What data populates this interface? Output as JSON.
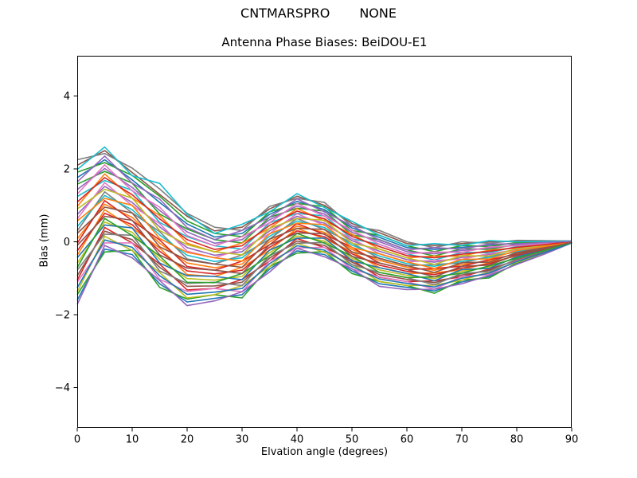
{
  "figure": {
    "suptitle_left": "CNTMARSPRO",
    "suptitle_right": "NONE",
    "axes_title": "Antenna Phase Biases: BeiDOU-E1",
    "xlabel": "Elvation angle (degrees)",
    "ylabel": "Bias (mm)"
  },
  "chart_data": {
    "type": "line",
    "suptitle": "CNTMARSPRO      NONE",
    "title": "Antenna Phase Biases: BeiDOU-E1",
    "xlabel": "Elvation angle (degrees)",
    "ylabel": "Bias (mm)",
    "xlim": [
      0,
      90
    ],
    "ylim": [
      -5.1,
      5.1
    ],
    "xticks": [
      0,
      10,
      20,
      30,
      40,
      50,
      60,
      70,
      80,
      90
    ],
    "yticks": [
      -4,
      -2,
      0,
      2,
      4
    ],
    "grid": false,
    "legend_position": "none",
    "line_width": 1.6,
    "x": [
      0,
      5,
      10,
      15,
      20,
      25,
      30,
      35,
      40,
      45,
      50,
      55,
      60,
      65,
      70,
      75,
      80,
      85,
      90
    ],
    "series": [
      {
        "color": "#1f77b4",
        "values": [
          -1.6,
          -0.2,
          -0.35,
          -1.15,
          -1.65,
          -1.55,
          -1.45,
          -0.75,
          -0.25,
          -0.35,
          -0.8,
          -1.15,
          -1.25,
          -1.35,
          -1.1,
          -0.95,
          -0.6,
          -0.33,
          -0.03
        ]
      },
      {
        "color": "#ff7f0e",
        "values": [
          0.08,
          1.03,
          0.67,
          -0.04,
          -0.58,
          -0.71,
          -0.61,
          0.0,
          0.43,
          0.26,
          -0.21,
          -0.51,
          -0.7,
          -0.78,
          -0.62,
          -0.52,
          -0.32,
          -0.17,
          -0.01
        ]
      },
      {
        "color": "#2ca02c",
        "values": [
          1.58,
          1.93,
          1.61,
          0.76,
          0.35,
          0.06,
          -0.03,
          0.67,
          0.92,
          0.84,
          0.19,
          0.06,
          -0.22,
          -0.39,
          -0.19,
          -0.21,
          -0.07,
          -0.03,
          0.01
        ]
      },
      {
        "color": "#d62728",
        "values": [
          -1.05,
          0.39,
          -0.03,
          -0.61,
          -1.32,
          -1.28,
          -1.03,
          -0.53,
          0.09,
          -0.16,
          -0.5,
          -0.97,
          -1.09,
          -1.07,
          -0.96,
          -0.75,
          -0.51,
          -0.28,
          -0.02
        ]
      },
      {
        "color": "#9467bd",
        "values": [
          0.75,
          1.52,
          1.08,
          0.41,
          -0.16,
          -0.37,
          -0.27,
          0.3,
          0.7,
          0.51,
          0.03,
          -0.26,
          -0.49,
          -0.56,
          -0.43,
          -0.35,
          -0.21,
          -0.11,
          0.0
        ]
      },
      {
        "color": "#8c564b",
        "values": [
          2.1,
          2.5,
          1.9,
          1.3,
          0.7,
          0.3,
          0.4,
          0.9,
          1.25,
          1.0,
          0.5,
          0.25,
          -0.05,
          -0.1,
          -0.05,
          0.0,
          0.02,
          0.02,
          0.02
        ]
      },
      {
        "color": "#e377c2",
        "values": [
          -1.11,
          -0.03,
          -0.03,
          -1.03,
          -1.36,
          -1.28,
          -1.37,
          -0.53,
          -0.17,
          -0.15,
          -0.75,
          -0.96,
          -1.09,
          -1.3,
          -0.95,
          -0.9,
          -0.52,
          -0.29,
          -0.03
        ]
      },
      {
        "color": "#7f7f7f",
        "values": [
          0.3,
          1.37,
          0.79,
          0.28,
          -0.47,
          -0.61,
          -0.36,
          0.07,
          0.64,
          0.33,
          -0.03,
          -0.46,
          -0.66,
          -0.62,
          -0.58,
          -0.4,
          -0.28,
          -0.15,
          0.0
        ]
      },
      {
        "color": "#bcbd22",
        "values": [
          -0.59,
          0.54,
          0.26,
          -0.48,
          -1.01,
          -1.05,
          -0.95,
          -0.3,
          0.16,
          0.02,
          -0.45,
          -0.77,
          -0.92,
          -1.01,
          -0.81,
          -0.69,
          -0.43,
          -0.23,
          -0.02
        ]
      },
      {
        "color": "#17becf",
        "values": [
          1.24,
          1.68,
          1.41,
          0.53,
          0.14,
          -0.11,
          -0.2,
          0.52,
          0.78,
          0.71,
          0.08,
          -0.07,
          -0.33,
          -0.5,
          -0.29,
          -0.3,
          -0.13,
          -0.07,
          0.01
        ]
      },
      {
        "color": "#1f77b4",
        "values": [
          1.76,
          2.25,
          1.7,
          1.08,
          0.49,
          0.13,
          0.23,
          0.75,
          1.11,
          0.88,
          0.38,
          0.12,
          -0.16,
          -0.21,
          -0.15,
          -0.09,
          -0.04,
          -0.01,
          0.01
        ]
      },
      {
        "color": "#ff7f0e",
        "values": [
          -0.37,
          0.88,
          0.38,
          -0.17,
          -0.9,
          -0.95,
          -0.7,
          -0.23,
          0.37,
          0.08,
          -0.27,
          -0.71,
          -0.87,
          -0.85,
          -0.77,
          -0.57,
          -0.39,
          -0.21,
          -0.01
        ]
      },
      {
        "color": "#2ca02c",
        "values": [
          -1.45,
          -0.28,
          -0.23,
          -1.25,
          -1.57,
          -1.45,
          -1.54,
          -0.68,
          -0.31,
          -0.27,
          -0.87,
          -1.09,
          -1.2,
          -1.41,
          -1.05,
          -0.99,
          -0.58,
          -0.32,
          -0.03
        ]
      },
      {
        "color": "#d62728",
        "values": [
          -0.04,
          1.13,
          0.58,
          0.05,
          -0.68,
          -0.78,
          -0.53,
          -0.08,
          0.5,
          0.2,
          -0.15,
          -0.58,
          -0.76,
          -0.73,
          -0.67,
          -0.49,
          -0.34,
          -0.18,
          -0.01
        ]
      },
      {
        "color": "#9467bd",
        "values": [
          1.43,
          2.01,
          1.49,
          0.86,
          0.27,
          -0.04,
          0.06,
          0.6,
          0.98,
          0.76,
          0.26,
          0.0,
          -0.27,
          -0.33,
          -0.24,
          -0.17,
          -0.09,
          -0.04,
          0.01
        ]
      },
      {
        "color": "#8c564b",
        "values": [
          -0.93,
          0.29,
          0.06,
          -0.7,
          -1.22,
          -1.21,
          -1.11,
          -0.45,
          0.02,
          -0.1,
          -0.56,
          -0.9,
          -1.03,
          -1.12,
          -0.91,
          -0.78,
          -0.49,
          -0.27,
          -0.02
        ]
      },
      {
        "color": "#e377c2",
        "values": [
          0.63,
          1.62,
          0.99,
          0.5,
          -0.26,
          -0.44,
          -0.19,
          0.22,
          0.77,
          0.45,
          0.09,
          -0.33,
          -0.55,
          -0.51,
          -0.48,
          -0.32,
          -0.23,
          -0.12,
          0.0
        ]
      },
      {
        "color": "#7f7f7f",
        "values": [
          2.25,
          2.42,
          2.02,
          1.45,
          0.78,
          0.4,
          0.31,
          0.97,
          1.19,
          1.08,
          0.43,
          0.31,
          0.0,
          -0.16,
          0.0,
          -0.04,
          0.04,
          0.03,
          0.02
        ]
      },
      {
        "color": "#bcbd22",
        "values": [
          -1.38,
          0.15,
          -0.24,
          -0.84,
          -1.54,
          -1.45,
          -1.2,
          -0.68,
          -0.04,
          -0.29,
          -0.62,
          -1.09,
          -1.2,
          -1.19,
          -1.05,
          -0.83,
          -0.56,
          -0.31,
          -0.03
        ]
      },
      {
        "color": "#17becf",
        "values": [
          0.42,
          1.27,
          0.88,
          0.19,
          -0.37,
          -0.54,
          -0.44,
          0.15,
          0.57,
          0.39,
          -0.09,
          -0.39,
          -0.6,
          -0.67,
          -0.53,
          -0.43,
          -0.26,
          -0.14,
          0.0
        ]
      },
      {
        "color": "#1f77b4",
        "values": [
          -0.44,
          0.46,
          0.38,
          -0.58,
          -0.93,
          -0.95,
          -1.04,
          -0.23,
          0.1,
          0.1,
          -0.52,
          -0.71,
          -0.87,
          -1.07,
          -0.76,
          -0.73,
          -0.41,
          -0.22,
          -0.02
        ]
      },
      {
        "color": "#ff7f0e",
        "values": [
          0.97,
          1.86,
          1.2,
          0.72,
          -0.04,
          -0.28,
          -0.03,
          0.37,
          0.91,
          0.57,
          0.21,
          -0.2,
          -0.44,
          -0.39,
          -0.39,
          -0.23,
          -0.17,
          -0.09,
          0.01
        ]
      },
      {
        "color": "#2ca02c",
        "values": [
          1.91,
          2.17,
          1.82,
          1.25,
          0.57,
          0.23,
          0.14,
          0.82,
          1.05,
          0.96,
          0.31,
          0.18,
          -0.11,
          -0.27,
          -0.1,
          -0.13,
          -0.02,
          0.0,
          0.01
        ]
      },
      {
        "color": "#d62728",
        "values": [
          -0.25,
          0.78,
          0.47,
          -0.26,
          -0.8,
          -0.88,
          -0.78,
          -0.15,
          0.3,
          0.14,
          -0.33,
          -0.64,
          -0.81,
          -0.9,
          -0.72,
          -0.6,
          -0.37,
          -0.2,
          -0.01
        ]
      },
      {
        "color": "#9467bd",
        "values": [
          -1.72,
          -0.1,
          -0.44,
          -1.06,
          -1.75,
          -1.62,
          -1.37,
          -0.83,
          -0.18,
          -0.41,
          -0.74,
          -1.22,
          -1.31,
          -1.3,
          -1.15,
          -0.92,
          -0.62,
          -0.34,
          -0.03
        ]
      },
      {
        "color": "#8c564b",
        "values": [
          0.23,
          0.95,
          0.79,
          -0.14,
          -0.5,
          -0.61,
          -0.7,
          0.07,
          0.37,
          0.34,
          -0.28,
          -0.45,
          -0.65,
          -0.84,
          -0.57,
          -0.56,
          -0.3,
          -0.16,
          -0.01
        ]
      },
      {
        "color": "#e377c2",
        "values": [
          1.31,
          2.11,
          1.4,
          0.95,
          0.17,
          -0.11,
          0.14,
          0.52,
          1.05,
          0.7,
          0.32,
          -0.07,
          -0.33,
          -0.28,
          -0.29,
          -0.14,
          -0.11,
          -0.05,
          0.01
        ]
      },
      {
        "color": "#7f7f7f",
        "values": [
          -0.78,
          0.21,
          0.18,
          -0.8,
          -1.14,
          -1.11,
          -1.2,
          -0.38,
          -0.04,
          -0.02,
          -0.63,
          -0.84,
          -0.98,
          -1.18,
          -0.86,
          -0.82,
          -0.47,
          -0.26,
          -0.02
        ]
      },
      {
        "color": "#bcbd22",
        "values": [
          0.9,
          1.44,
          1.2,
          0.31,
          -0.08,
          -0.27,
          -0.36,
          0.37,
          0.64,
          0.59,
          -0.04,
          -0.2,
          -0.44,
          -0.62,
          -0.38,
          -0.39,
          -0.19,
          -0.1,
          0.0
        ]
      },
      {
        "color": "#17becf",
        "values": [
          1.98,
          2.6,
          1.81,
          1.6,
          0.75,
          0.23,
          0.48,
          0.82,
          1.32,
          0.94,
          0.56,
          0.18,
          -0.11,
          -0.05,
          -0.1,
          0.03,
          0.0,
          0.01,
          0.02
        ]
      },
      {
        "color": "#1f77b4",
        "values": [
          -1.26,
          0.05,
          -0.15,
          -0.93,
          -1.44,
          -1.38,
          -1.28,
          -0.6,
          -0.11,
          -0.23,
          -0.68,
          -1.02,
          -1.14,
          -1.24,
          -1.0,
          -0.86,
          -0.54,
          -0.3,
          -0.03
        ]
      },
      {
        "color": "#ff7f0e",
        "values": [
          0.57,
          1.19,
          1.0,
          0.09,
          -0.29,
          -0.44,
          -0.53,
          0.22,
          0.51,
          0.47,
          -0.16,
          -0.33,
          -0.55,
          -0.73,
          -0.48,
          -0.47,
          -0.24,
          -0.13,
          0.0
        ]
      },
      {
        "color": "#2ca02c",
        "values": [
          -0.71,
          0.64,
          0.17,
          -0.39,
          -1.11,
          -1.12,
          -0.87,
          -0.38,
          0.23,
          -0.04,
          -0.39,
          -0.84,
          -0.98,
          -0.96,
          -0.86,
          -0.66,
          -0.45,
          -0.24,
          -0.02
        ]
      },
      {
        "color": "#d62728",
        "values": [
          1.09,
          1.76,
          1.29,
          0.63,
          0.06,
          -0.21,
          -0.11,
          0.45,
          0.84,
          0.63,
          0.15,
          -0.13,
          -0.38,
          -0.44,
          -0.34,
          -0.26,
          -0.15,
          -0.08,
          0.01
        ]
      },
      {
        "color": "#9467bd",
        "values": [
          1.64,
          2.35,
          1.61,
          1.17,
          0.39,
          0.06,
          0.31,
          0.67,
          1.18,
          0.82,
          0.44,
          0.05,
          -0.22,
          -0.16,
          -0.2,
          -0.06,
          -0.06,
          -0.02,
          0.01
        ]
      },
      {
        "color": "#8c564b",
        "values": [
          -0.1,
          0.7,
          0.59,
          -0.36,
          -0.72,
          -0.78,
          -0.87,
          -0.08,
          0.24,
          0.22,
          -0.4,
          -0.58,
          -0.76,
          -0.96,
          -0.67,
          -0.64,
          -0.35,
          -0.19,
          -0.01
        ]
      }
    ]
  }
}
